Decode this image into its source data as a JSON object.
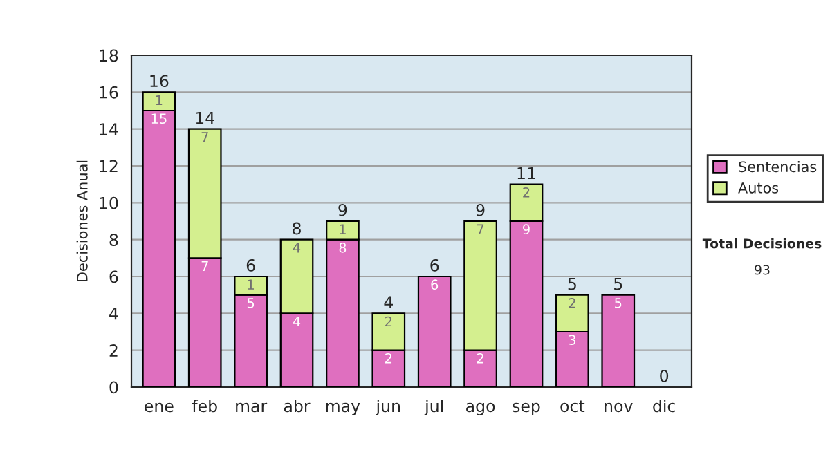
{
  "chart_data": {
    "type": "bar",
    "stacked": true,
    "ylabel": "Decisiones Anual",
    "categories": [
      "ene",
      "feb",
      "mar",
      "abr",
      "may",
      "jun",
      "jul",
      "ago",
      "sep",
      "oct",
      "nov",
      "dic"
    ],
    "series": [
      {
        "name": "Sentencias",
        "color": "#df6fbf",
        "values": [
          15,
          7,
          5,
          4,
          8,
          2,
          6,
          2,
          9,
          3,
          5,
          0
        ],
        "value_labels": [
          "15",
          "7",
          "5",
          "4",
          "8",
          "2",
          "6",
          "2",
          "9",
          "3",
          "5",
          null
        ]
      },
      {
        "name": "Autos",
        "color": "#d4ef8f",
        "values": [
          1,
          7,
          1,
          4,
          1,
          2,
          0,
          7,
          2,
          2,
          0,
          0
        ],
        "value_labels": [
          "1",
          "7",
          "1",
          "4",
          "1",
          "2",
          null,
          "7",
          "2",
          "2",
          null,
          null
        ]
      }
    ],
    "totals": [
      "16",
      "14",
      "6",
      "8",
      "9",
      "4",
      "6",
      "9",
      "11",
      "5",
      "5",
      "0"
    ],
    "ylim": [
      0,
      18
    ],
    "yticks": [
      0,
      2,
      4,
      6,
      8,
      10,
      12,
      14,
      16,
      18
    ],
    "grid": "y",
    "legend": "right",
    "annotations": [
      "Total Decisiones",
      "93"
    ]
  }
}
